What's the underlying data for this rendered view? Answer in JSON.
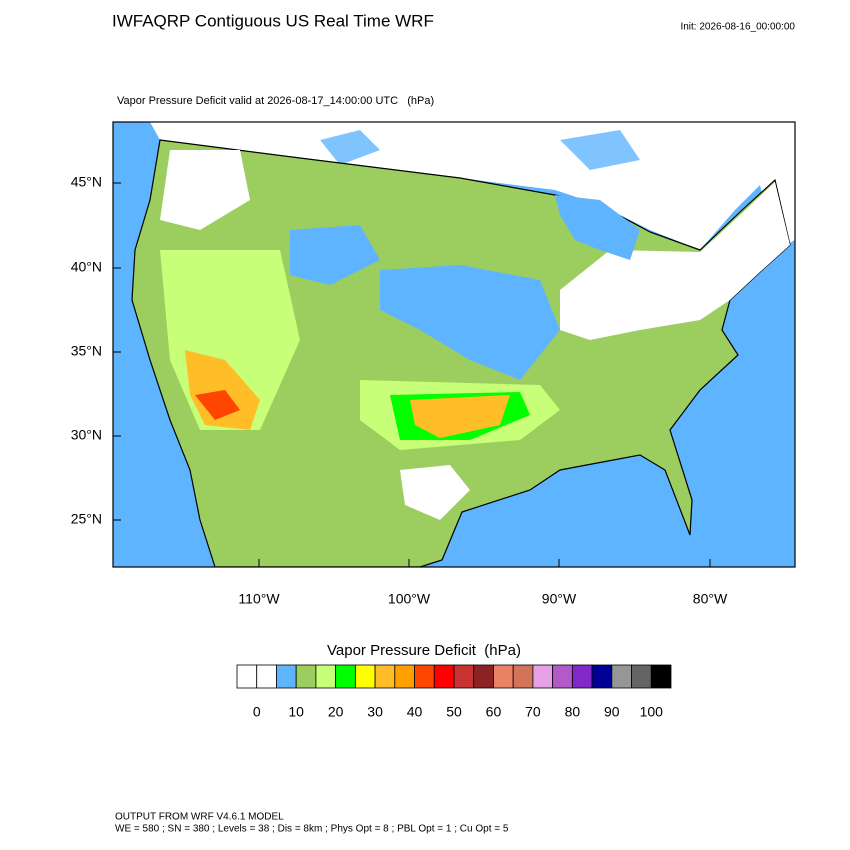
{
  "header": {
    "title": "IWFAQRP Contiguous US Real Time WRF",
    "init": "Init: 2026-08-16_00:00:00"
  },
  "map": {
    "subtitle": "Vapor Pressure Deficit valid at 2026-08-17_14:00:00 UTC   (hPa)",
    "lat_labels": [
      "45°N",
      "40°N",
      "35°N",
      "30°N",
      "25°N"
    ],
    "lon_labels": [
      "110°W",
      "100°W",
      "90°W",
      "80°W"
    ]
  },
  "colorbar": {
    "title": "Vapor Pressure Deficit  (hPa)",
    "colors": [
      "#ffffff",
      "#ffffff",
      "#5fb4ff",
      "#9bcd5f",
      "#c8ff78",
      "#00ff00",
      "#ffff00",
      "#ffbe28",
      "#ffa000",
      "#ff4600",
      "#ff0000",
      "#c83232",
      "#8c2323",
      "#eb8264",
      "#d2735a",
      "#e6a0e6",
      "#b45ac8",
      "#8228c8",
      "#000096",
      "#969696",
      "#646464",
      "#000000"
    ],
    "ticks": [
      0,
      10,
      20,
      30,
      40,
      50,
      60,
      70,
      80,
      90,
      100
    ]
  },
  "footer": {
    "lines": [
      "OUTPUT FROM WRF V4.6.1 MODEL",
      "WE = 580 ; SN = 380 ; Levels = 38 ; Dis = 8km ; Phys Opt = 8 ; PBL Opt = 1 ; Cu Opt = 5"
    ]
  }
}
